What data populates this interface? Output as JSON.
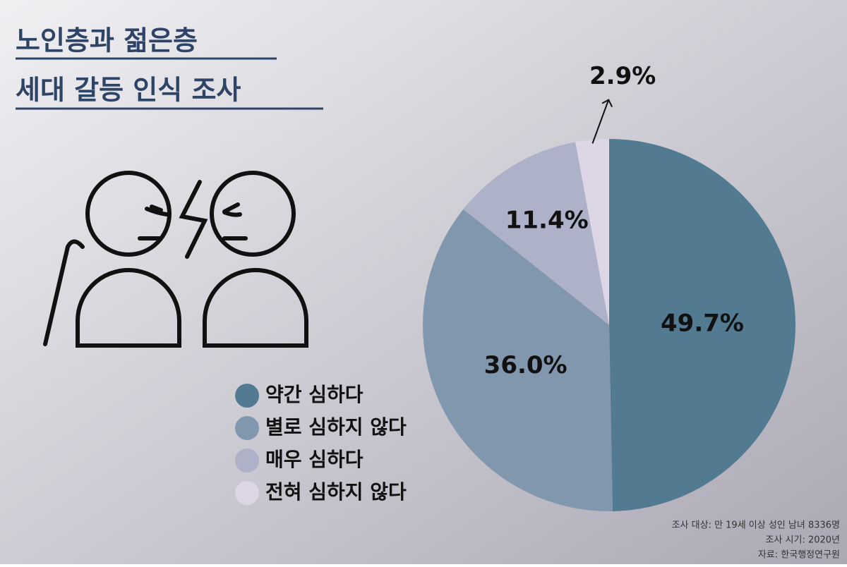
{
  "chart_data": {
    "type": "pie",
    "title": [
      "노인층과 젊은층",
      "세대 갈등 인식 조사"
    ],
    "categories": [
      "약간 심하다",
      "별로 심하지 않다",
      "매우 심하다",
      "전혀 심하지 않다"
    ],
    "values": [
      49.7,
      36.0,
      11.4,
      2.9
    ],
    "value_labels": [
      "49.7%",
      "36.0%",
      "11.4%",
      "2.9%"
    ],
    "colors": [
      "#527b91",
      "#8197ae",
      "#aeb2c9",
      "#dcd6e6"
    ],
    "notes": [
      "조사 대상: 만 19세 이상 성인 남녀 8336명",
      "조사 시기: 2020년",
      "자료: 한국행정연구원"
    ]
  }
}
